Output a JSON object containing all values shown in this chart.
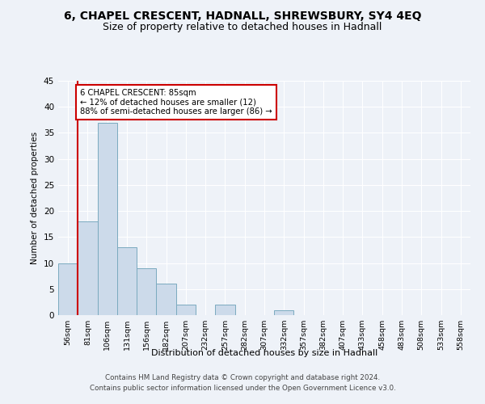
{
  "title": "6, CHAPEL CRESCENT, HADNALL, SHREWSBURY, SY4 4EQ",
  "subtitle": "Size of property relative to detached houses in Hadnall",
  "xlabel": "Distribution of detached houses by size in Hadnall",
  "ylabel": "Number of detached properties",
  "bar_labels": [
    "56sqm",
    "81sqm",
    "106sqm",
    "131sqm",
    "156sqm",
    "182sqm",
    "207sqm",
    "232sqm",
    "257sqm",
    "282sqm",
    "307sqm",
    "332sqm",
    "357sqm",
    "382sqm",
    "407sqm",
    "433sqm",
    "458sqm",
    "483sqm",
    "508sqm",
    "533sqm",
    "558sqm"
  ],
  "bar_values": [
    10,
    18,
    37,
    13,
    9,
    6,
    2,
    0,
    2,
    0,
    0,
    1,
    0,
    0,
    0,
    0,
    0,
    0,
    0,
    0,
    0
  ],
  "bar_color": "#ccdaea",
  "bar_edge_color": "#7aaabf",
  "ylim": [
    0,
    45
  ],
  "yticks": [
    0,
    5,
    10,
    15,
    20,
    25,
    30,
    35,
    40,
    45
  ],
  "red_line_x": 0.5,
  "annotation_text": "6 CHAPEL CRESCENT: 85sqm\n← 12% of detached houses are smaller (12)\n88% of semi-detached houses are larger (86) →",
  "annotation_box_color": "white",
  "annotation_box_edge_color": "#cc0000",
  "red_line_color": "#cc0000",
  "footnote1": "Contains HM Land Registry data © Crown copyright and database right 2024.",
  "footnote2": "Contains public sector information licensed under the Open Government Licence v3.0.",
  "background_color": "#eef2f8",
  "grid_color": "white",
  "title_fontsize": 10,
  "subtitle_fontsize": 9
}
